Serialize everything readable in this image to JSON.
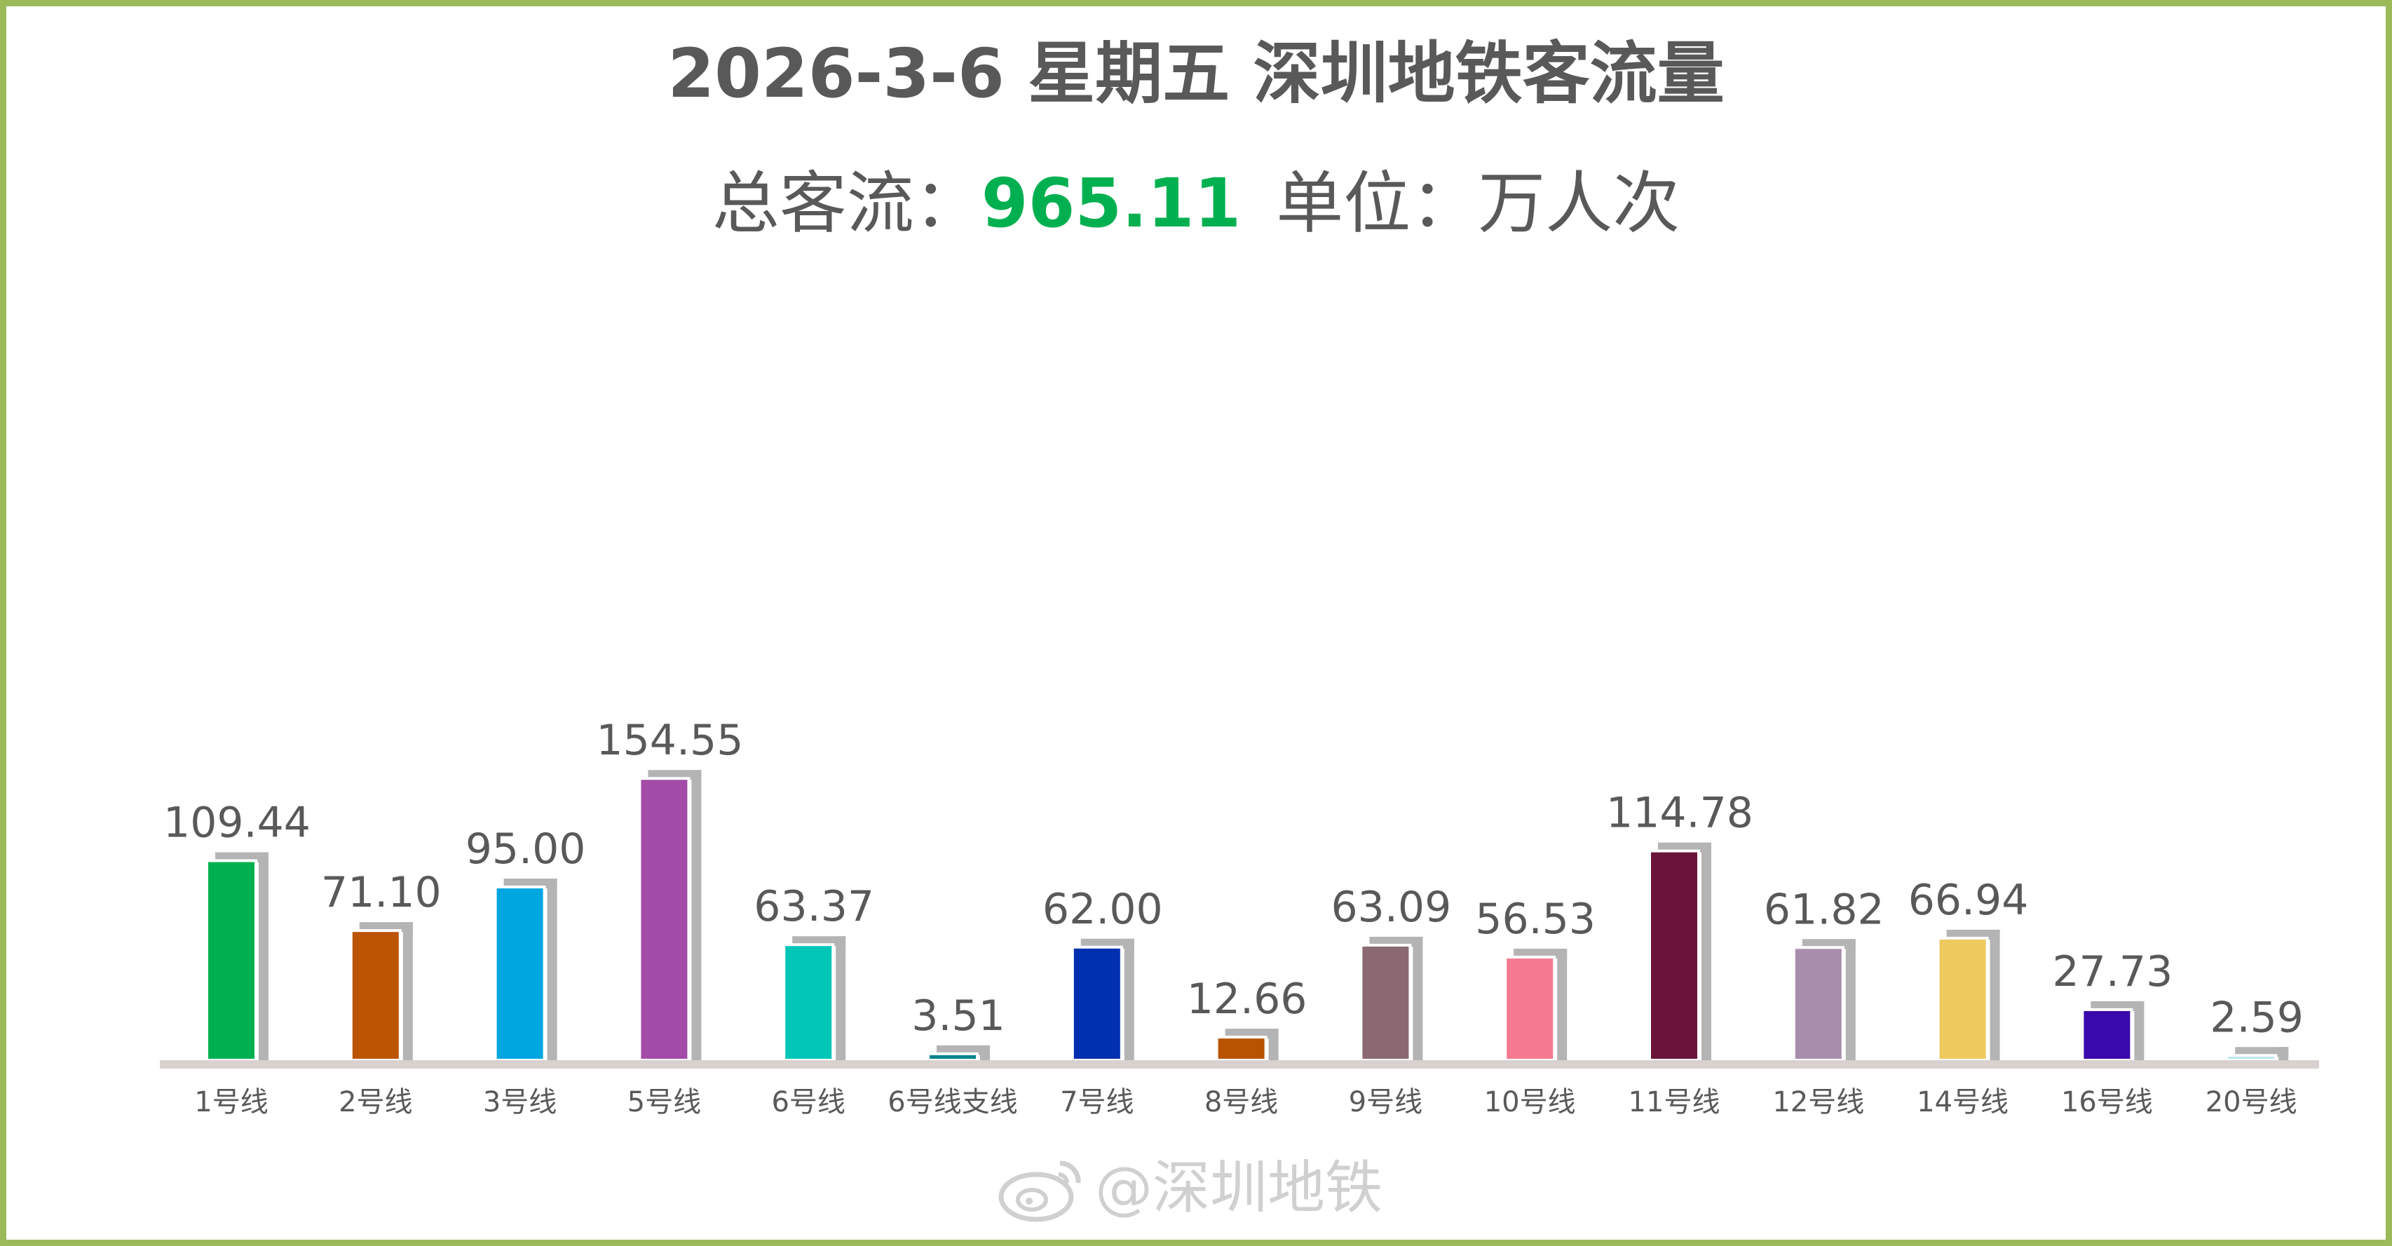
{
  "header": {
    "title": "2026-3-6 星期五  深圳地铁客流量",
    "total_label": "总客流：",
    "total_value": "965.11",
    "unit_label": "单位：万人次"
  },
  "watermark": {
    "text": "@深圳地铁",
    "icon": "weibo-icon"
  },
  "chart_data": {
    "type": "bar",
    "title": "2026-3-6 星期五  深圳地铁客流量",
    "xlabel": "",
    "ylabel": "万人次",
    "ylim": [
      0,
      160
    ],
    "grid": false,
    "legend": "none",
    "categories": [
      "1号线",
      "2号线",
      "3号线",
      "5号线",
      "6号线",
      "6号线支线",
      "7号线",
      "8号线",
      "9号线",
      "10号线",
      "11号线",
      "12号线",
      "14号线",
      "16号线",
      "20号线"
    ],
    "values": [
      109.44,
      71.1,
      95.0,
      154.55,
      63.37,
      3.51,
      62.0,
      12.66,
      63.09,
      56.53,
      114.78,
      61.82,
      66.94,
      27.73,
      2.59
    ],
    "value_labels": [
      "109.44",
      "71.10",
      "95.00",
      "154.55",
      "63.37",
      "3.51",
      "62.00",
      "12.66",
      "63.09",
      "56.53",
      "114.78",
      "61.82",
      "66.94",
      "27.73",
      "2.59"
    ],
    "colors": [
      "#00b050",
      "#bb5504",
      "#00a6e0",
      "#a24ca7",
      "#00c6b8",
      "#00848c",
      "#002fb0",
      "#b85400",
      "#8a6a70",
      "#f67992",
      "#6a1439",
      "#a68eac",
      "#edc95e",
      "#3a09ac",
      "#b5e3ee"
    ],
    "shadow_color": "#b4b4b4",
    "axis_color": "#d9d0d0"
  }
}
